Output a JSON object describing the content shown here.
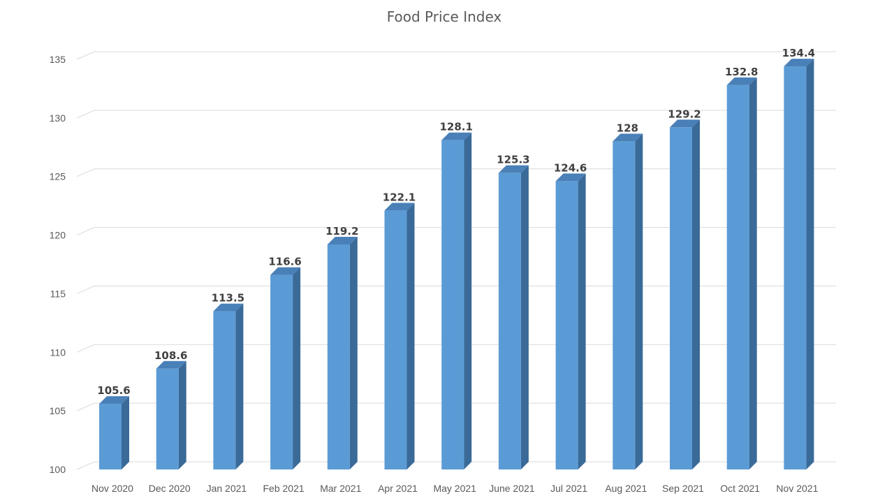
{
  "chart_data": {
    "type": "bar",
    "title": "Food Price Index",
    "xlabel": "",
    "ylabel": "",
    "categories": [
      "Nov 2020",
      "Dec 2020",
      "Jan 2021",
      "Feb 2021",
      "Mar 2021",
      "Apr 2021",
      "May 2021",
      "June 2021",
      "Jul 2021",
      "Aug 2021",
      "Sep 2021",
      "Oct 2021",
      "Nov 2021"
    ],
    "values": [
      105.6,
      108.6,
      113.5,
      116.6,
      119.2,
      122.1,
      128.1,
      125.3,
      124.6,
      128,
      129.2,
      132.8,
      134.4
    ],
    "data_labels": [
      "105.6",
      "108.6",
      "113.5",
      "116.6",
      "119.2",
      "122.1",
      "128.1",
      "125.3",
      "124.6",
      "128",
      "129.2",
      "132.8",
      "134.4"
    ],
    "ylim": [
      100,
      135
    ],
    "yticks": [
      100,
      105,
      110,
      115,
      120,
      125,
      130,
      135
    ],
    "grid": true,
    "legend": "none",
    "style": "3d-column",
    "colors": {
      "bar_front": "#5b9bd5",
      "bar_side": "#3a6a98",
      "bar_top": "#4a80b8",
      "grid": "#d9d9d9",
      "text": "#595959",
      "data_label": "#404040"
    }
  }
}
